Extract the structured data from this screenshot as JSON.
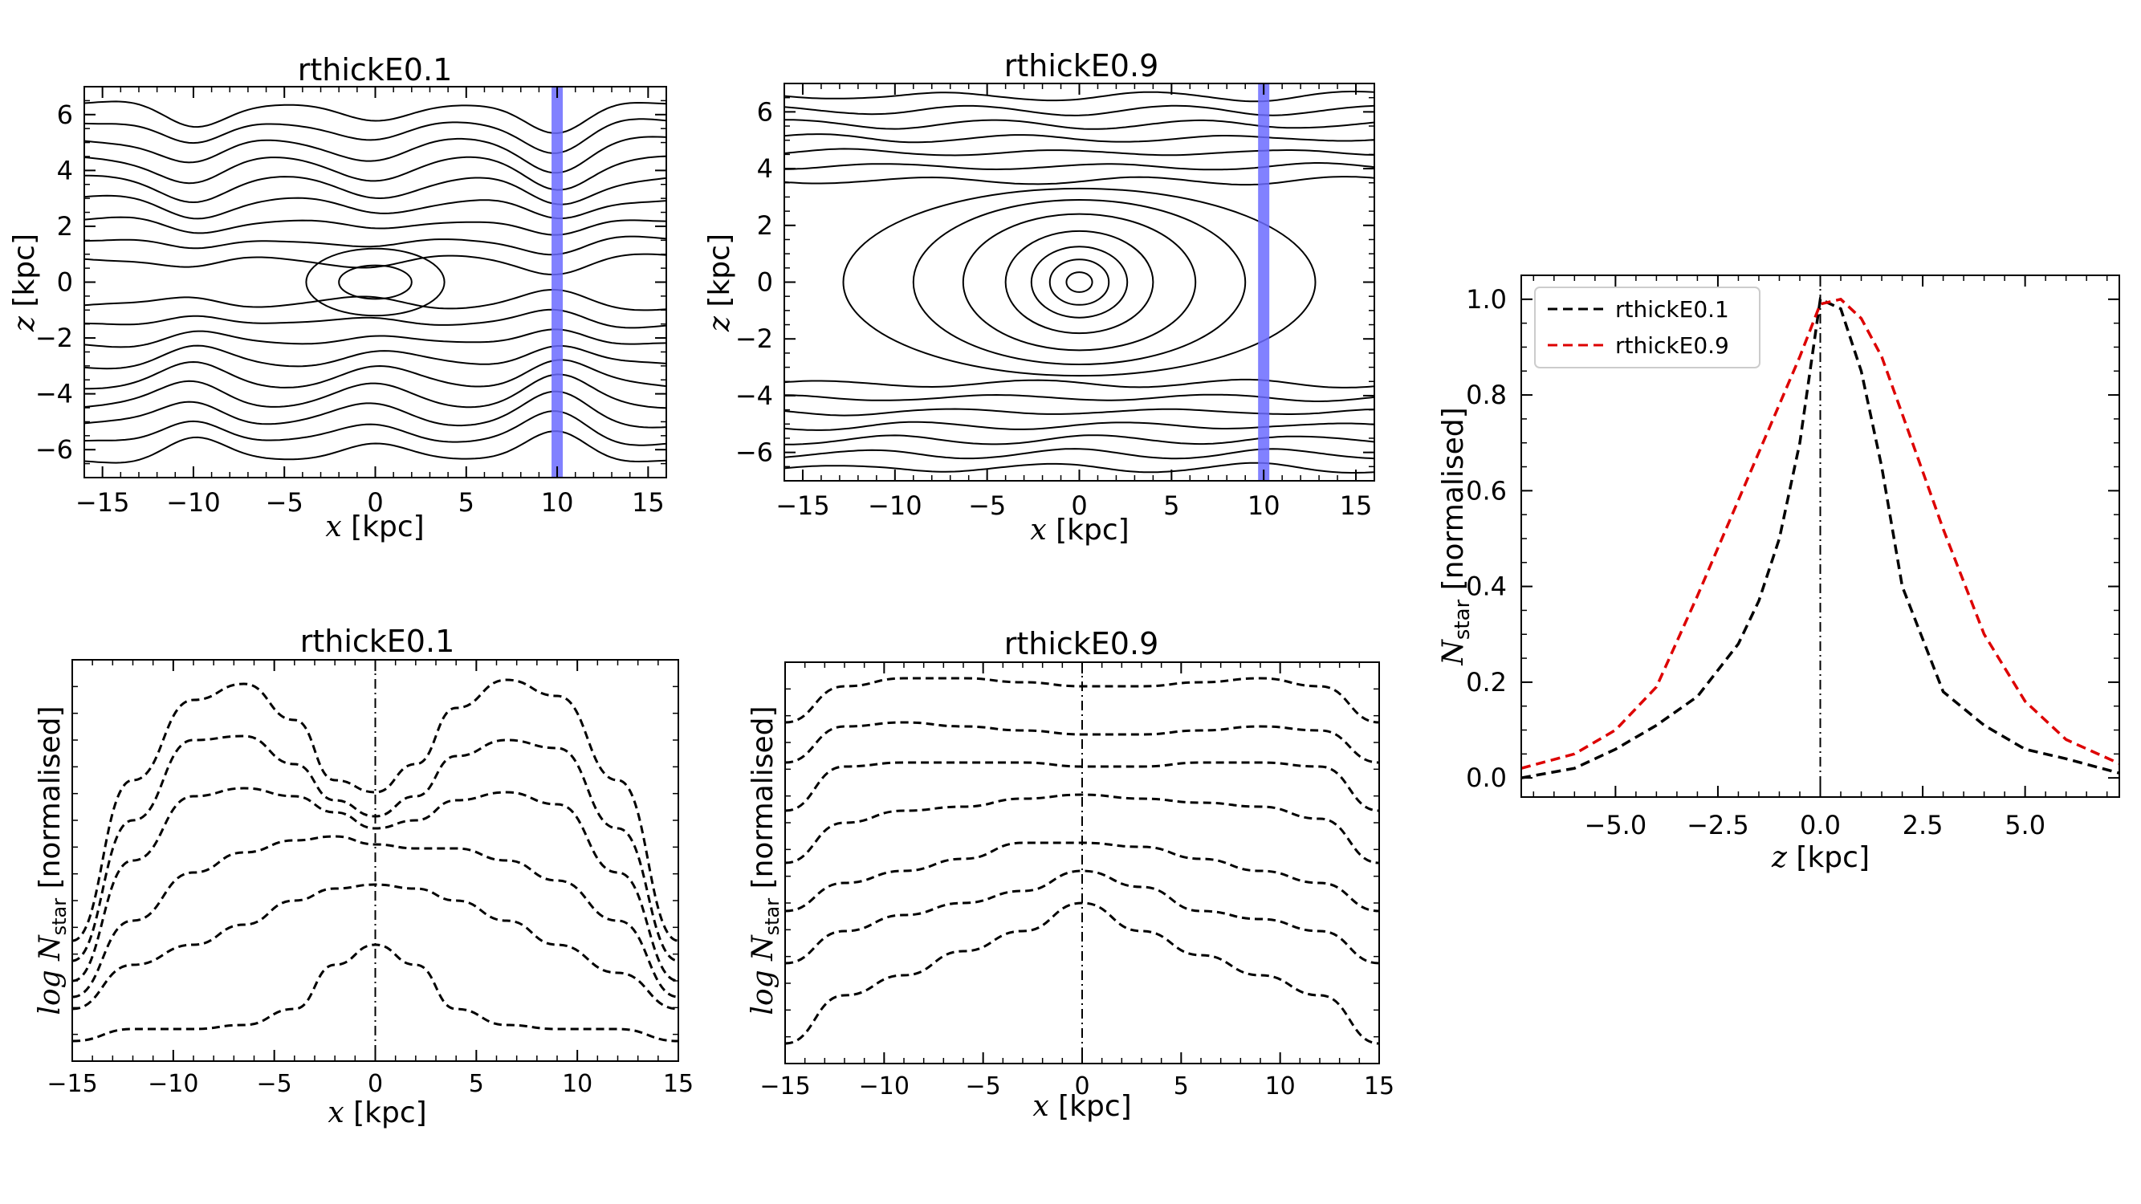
{
  "chart_data": [
    {
      "id": "p1",
      "type": "contour",
      "title": "rthickE0.1",
      "xlabel_var": "x",
      "xlabel_unit": " [kpc]",
      "ylabel_var": "z",
      "ylabel_unit": " [kpc]",
      "xlim": [
        -16,
        16
      ],
      "ylim": [
        -7,
        7
      ],
      "xticks": [
        -15,
        -10,
        -5,
        0,
        5,
        10,
        15
      ],
      "yticks": [
        -6,
        -4,
        -2,
        0,
        2,
        4,
        6
      ],
      "xtick_labels": [
        "−15",
        "−10",
        "−5",
        "0",
        "5",
        "10",
        "15"
      ],
      "ytick_labels": [
        "−6",
        "−4",
        "−2",
        "0",
        "2",
        "4",
        "6"
      ],
      "highlight_band_x": 10,
      "band_color": "#6b6bff",
      "core_ellipses": [
        [
          2.0,
          0.6
        ],
        [
          3.8,
          1.2
        ]
      ],
      "contour_levels_z": [
        0.9,
        1.6,
        2.3,
        3.0,
        3.7,
        4.4,
        5.1,
        5.8,
        6.5
      ],
      "central_dip": 0.6,
      "band_dip": 0.9
    },
    {
      "id": "p2",
      "type": "contour",
      "title": "rthickE0.9",
      "xlabel_var": "x",
      "xlabel_unit": " [kpc]",
      "ylabel_var": "z",
      "ylabel_unit": " [kpc]",
      "xlim": [
        -16,
        16
      ],
      "ylim": [
        -7,
        7
      ],
      "xticks": [
        -15,
        -10,
        -5,
        0,
        5,
        10,
        15
      ],
      "yticks": [
        -6,
        -4,
        -2,
        0,
        2,
        4,
        6
      ],
      "xtick_labels": [
        "−15",
        "−10",
        "−5",
        "0",
        "5",
        "10",
        "15"
      ],
      "ytick_labels": [
        "−6",
        "−4",
        "−2",
        "0",
        "2",
        "4",
        "6"
      ],
      "highlight_band_x": 10,
      "band_color": "#6b6bff",
      "core_ellipses": [
        [
          0.7,
          0.35
        ],
        [
          1.6,
          0.8
        ],
        [
          2.6,
          1.25
        ],
        [
          4.0,
          1.8
        ],
        [
          6.3,
          2.4
        ],
        [
          9.0,
          2.9
        ],
        [
          12.8,
          3.3
        ]
      ],
      "contour_levels_z": [
        3.6,
        4.1,
        4.6,
        5.1,
        5.6,
        6.1,
        6.6
      ],
      "central_dip": 0.1,
      "band_dip": 0.1
    },
    {
      "id": "p3",
      "type": "line",
      "title": "rthickE0.1",
      "xlabel_var": "x",
      "xlabel_unit": " [kpc]",
      "ylabel_var": "log N",
      "ylabel_sub": "star",
      "ylabel_unit": " [normalised]",
      "xlim": [
        -15,
        15
      ],
      "ylim": [
        0,
        1
      ],
      "xticks": [
        -15,
        -10,
        -5,
        0,
        5,
        10,
        15
      ],
      "xtick_labels": [
        "−15",
        "−10",
        "−5",
        "0",
        "5",
        "10",
        "15"
      ],
      "vline_x": 0,
      "x": [
        -15,
        -12,
        -9,
        -6.5,
        -4,
        -2,
        0,
        2,
        4,
        6.5,
        9,
        12,
        15
      ],
      "series": [
        {
          "name": "c1",
          "values": [
            0.3,
            0.7,
            0.9,
            0.94,
            0.85,
            0.7,
            0.67,
            0.74,
            0.88,
            0.95,
            0.91,
            0.7,
            0.3
          ]
        },
        {
          "name": "c2",
          "values": [
            0.25,
            0.6,
            0.8,
            0.81,
            0.74,
            0.65,
            0.61,
            0.66,
            0.76,
            0.8,
            0.78,
            0.58,
            0.25
          ]
        },
        {
          "name": "c3",
          "values": [
            0.2,
            0.5,
            0.66,
            0.68,
            0.66,
            0.62,
            0.58,
            0.6,
            0.65,
            0.67,
            0.64,
            0.47,
            0.2
          ]
        },
        {
          "name": "c4",
          "values": [
            0.16,
            0.35,
            0.47,
            0.52,
            0.55,
            0.56,
            0.54,
            0.53,
            0.53,
            0.5,
            0.45,
            0.35,
            0.16
          ]
        },
        {
          "name": "c5",
          "values": [
            0.13,
            0.24,
            0.29,
            0.34,
            0.4,
            0.43,
            0.44,
            0.43,
            0.4,
            0.35,
            0.29,
            0.22,
            0.13
          ]
        },
        {
          "name": "c6",
          "values": [
            0.05,
            0.08,
            0.08,
            0.09,
            0.13,
            0.24,
            0.29,
            0.24,
            0.13,
            0.09,
            0.08,
            0.08,
            0.05
          ]
        }
      ]
    },
    {
      "id": "p4",
      "type": "line",
      "title": "rthickE0.9",
      "xlabel_var": "x",
      "xlabel_unit": " [kpc]",
      "ylabel_var": "log N",
      "ylabel_sub": "star",
      "ylabel_unit": " [normalised]",
      "xlim": [
        -15,
        15
      ],
      "ylim": [
        0,
        1
      ],
      "xticks": [
        -15,
        -10,
        -5,
        0,
        5,
        10,
        15
      ],
      "xtick_labels": [
        "−15",
        "−10",
        "−5",
        "0",
        "5",
        "10",
        "15"
      ],
      "vline_x": 0,
      "x": [
        -15,
        -12,
        -9,
        -6,
        -3,
        0,
        3,
        6,
        9,
        12,
        15
      ],
      "series": [
        {
          "name": "c1",
          "values": [
            0.85,
            0.94,
            0.96,
            0.96,
            0.95,
            0.94,
            0.94,
            0.95,
            0.96,
            0.94,
            0.85
          ]
        },
        {
          "name": "c2",
          "values": [
            0.75,
            0.84,
            0.85,
            0.84,
            0.83,
            0.82,
            0.82,
            0.83,
            0.84,
            0.83,
            0.75
          ]
        },
        {
          "name": "c3",
          "values": [
            0.63,
            0.74,
            0.75,
            0.75,
            0.75,
            0.74,
            0.74,
            0.75,
            0.75,
            0.74,
            0.63
          ]
        },
        {
          "name": "c4",
          "values": [
            0.5,
            0.6,
            0.63,
            0.64,
            0.66,
            0.67,
            0.66,
            0.65,
            0.64,
            0.61,
            0.5
          ]
        },
        {
          "name": "c5",
          "values": [
            0.38,
            0.45,
            0.48,
            0.51,
            0.55,
            0.55,
            0.54,
            0.51,
            0.48,
            0.45,
            0.38
          ]
        },
        {
          "name": "c6",
          "values": [
            0.25,
            0.33,
            0.37,
            0.4,
            0.43,
            0.48,
            0.44,
            0.38,
            0.36,
            0.33,
            0.25
          ]
        },
        {
          "name": "c7",
          "values": [
            0.05,
            0.17,
            0.22,
            0.28,
            0.33,
            0.4,
            0.33,
            0.27,
            0.22,
            0.17,
            0.05
          ]
        }
      ]
    },
    {
      "id": "p5",
      "type": "line",
      "title": "",
      "xlabel_var": "z",
      "xlabel_unit": " [kpc]",
      "ylabel_var": "N",
      "ylabel_sub": "star",
      "ylabel_unit": " [normalised]",
      "xlim": [
        -7.3,
        7.3
      ],
      "ylim": [
        -0.04,
        1.05
      ],
      "xticks": [
        -5,
        -2.5,
        0,
        2.5,
        5
      ],
      "xtick_labels": [
        "−5.0",
        "−2.5",
        "0.0",
        "2.5",
        "5.0"
      ],
      "yticks": [
        0,
        0.2,
        0.4,
        0.6,
        0.8,
        1.0
      ],
      "ytick_labels": [
        "0.0",
        "0.2",
        "0.4",
        "0.6",
        "0.8",
        "1.0"
      ],
      "vline_x": 0,
      "legend_position": "upper-left",
      "series": [
        {
          "name": "rthickE0.1",
          "color": "#000000",
          "x": [
            -7.3,
            -6,
            -5,
            -4,
            -3,
            -2,
            -1.5,
            -1,
            -0.5,
            0,
            0.5,
            1,
            1.5,
            2,
            3,
            4,
            5,
            6,
            7.3
          ],
          "values": [
            0.0,
            0.02,
            0.06,
            0.11,
            0.17,
            0.28,
            0.37,
            0.5,
            0.7,
            1.0,
            0.98,
            0.85,
            0.65,
            0.4,
            0.18,
            0.11,
            0.06,
            0.04,
            0.01
          ]
        },
        {
          "name": "rthickE0.9",
          "color": "#dd0000",
          "x": [
            -7.3,
            -6,
            -5,
            -4,
            -3,
            -2,
            -1,
            -0.5,
            0,
            0.5,
            1,
            1.5,
            2,
            3,
            4,
            5,
            6,
            7.3
          ],
          "values": [
            0.02,
            0.05,
            0.1,
            0.19,
            0.38,
            0.58,
            0.78,
            0.88,
            0.99,
            1.0,
            0.96,
            0.88,
            0.76,
            0.52,
            0.3,
            0.16,
            0.08,
            0.03
          ]
        }
      ]
    }
  ]
}
